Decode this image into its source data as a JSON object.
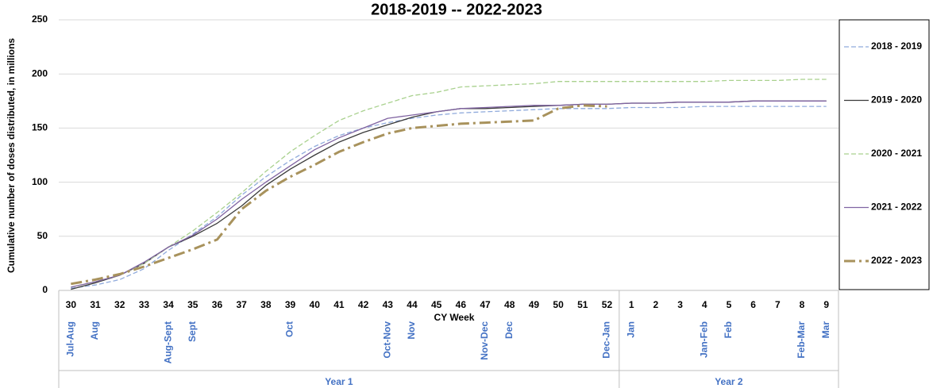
{
  "chart_data": {
    "type": "line",
    "title": "2018-2019 -- 2022-2023",
    "y_label": "Cumulative number of doses distributed, in millions",
    "x_label": "CY Week",
    "categories": [
      "30",
      "31",
      "32",
      "33",
      "34",
      "35",
      "36",
      "37",
      "38",
      "39",
      "40",
      "41",
      "42",
      "43",
      "44",
      "45",
      "46",
      "47",
      "48",
      "49",
      "50",
      "51",
      "52",
      "1",
      "2",
      "3",
      "4",
      "5",
      "6",
      "7",
      "8",
      "9"
    ],
    "month_labels": [
      "Jul-Aug",
      "Aug",
      null,
      null,
      "Aug-Sept",
      "Sept",
      null,
      null,
      null,
      "Oct",
      null,
      null,
      null,
      "Oct-Nov",
      "Nov",
      null,
      null,
      "Nov-Dec",
      "Dec",
      null,
      null,
      null,
      "Dec-Jan",
      "Jan",
      null,
      null,
      "Jan-Feb",
      "Feb",
      null,
      null,
      "Feb-Mar",
      "Mar"
    ],
    "groups": [
      {
        "label": "Year 1",
        "from": "30",
        "to": "52"
      },
      {
        "label": "Year 2",
        "from": "1",
        "to": "9"
      }
    ],
    "ylim": [
      0,
      250
    ],
    "yticks": [
      0,
      50,
      100,
      150,
      200,
      250
    ],
    "grid": true,
    "legend": "right",
    "series": [
      {
        "name": "2018 - 2019",
        "color": "#8faadc",
        "style": "dashed",
        "width": 1.3,
        "values": [
          2,
          5,
          10,
          20,
          37,
          52,
          68,
          88,
          105,
          120,
          133,
          143,
          150,
          155,
          159,
          162,
          164,
          165,
          166,
          167,
          168,
          168,
          168,
          169,
          169,
          169,
          170,
          170,
          170,
          170,
          170,
          170
        ]
      },
      {
        "name": "2019 - 2020",
        "color": "#3a3a3a",
        "style": "solid",
        "width": 1.3,
        "values": [
          1,
          7,
          14,
          25,
          40,
          50,
          62,
          78,
          97,
          112,
          125,
          137,
          146,
          153,
          160,
          165,
          168,
          168,
          169,
          170,
          171,
          172,
          172,
          173,
          173,
          174,
          174,
          174,
          175,
          175,
          175,
          175
        ]
      },
      {
        "name": "2020 - 2021",
        "color": "#a9d18e",
        "style": "dashed",
        "width": 1.3,
        "values": [
          3,
          8,
          14,
          25,
          40,
          55,
          72,
          90,
          110,
          128,
          143,
          157,
          166,
          173,
          180,
          183,
          188,
          189,
          190,
          191,
          193,
          193,
          193,
          193,
          193,
          193,
          193,
          194,
          194,
          194,
          195,
          195
        ]
      },
      {
        "name": "2021 - 2022",
        "color": "#8064a2",
        "style": "solid",
        "width": 1.3,
        "values": [
          3,
          8,
          14,
          26,
          40,
          51,
          66,
          84,
          100,
          115,
          130,
          141,
          150,
          159,
          162,
          165,
          168,
          169,
          170,
          171,
          171,
          172,
          172,
          173,
          173,
          174,
          174,
          174,
          175,
          175,
          175,
          175
        ]
      },
      {
        "name": "2022 - 2023",
        "color": "#a8925c",
        "style": "dash-dot",
        "width": 3,
        "values": [
          6,
          10,
          15,
          22,
          30,
          38,
          47,
          75,
          92,
          105,
          116,
          128,
          137,
          145,
          150,
          152,
          154,
          155,
          156,
          157,
          168,
          171,
          170,
          null,
          null,
          null,
          null,
          null,
          null,
          null,
          null,
          null
        ]
      }
    ]
  }
}
